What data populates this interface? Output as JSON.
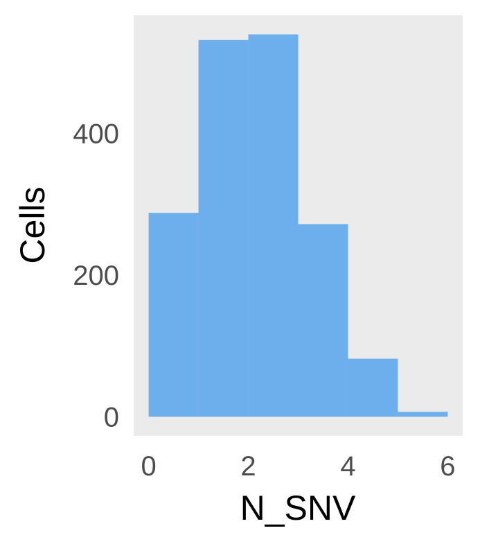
{
  "chart_data": {
    "type": "bar",
    "title": "",
    "xlabel": "N_SNV",
    "ylabel": "Cells",
    "bin_edges": [
      0,
      1,
      2,
      3,
      4,
      5,
      6
    ],
    "values": [
      288,
      532,
      540,
      272,
      82,
      7
    ],
    "xlim": [
      -0.3,
      6.3
    ],
    "ylim": [
      -27,
      567
    ],
    "x_ticks": [
      0,
      2,
      4,
      6
    ],
    "y_ticks": [
      0,
      200,
      400
    ],
    "x_tick_labels": [
      "0",
      "2",
      "4",
      "6"
    ],
    "y_tick_labels": [
      "0",
      "200",
      "400"
    ],
    "grid": false,
    "legend": "none",
    "colors": {
      "bar": "#6daeec",
      "panel": "#ebebeb",
      "tick_text": "#4d4d4d",
      "title_text": "#000000"
    }
  }
}
